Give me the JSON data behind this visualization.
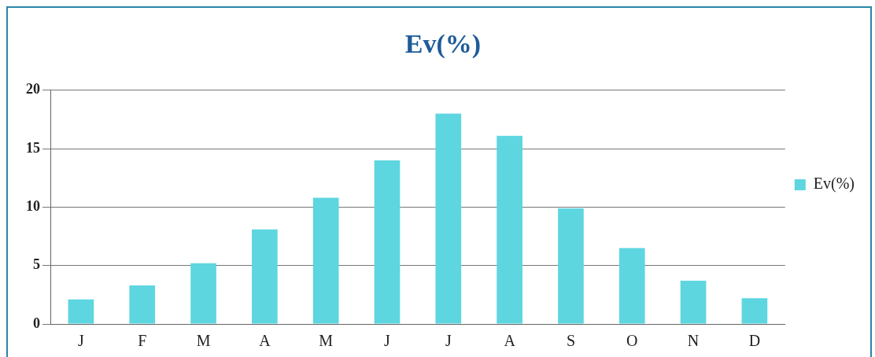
{
  "chart_data": {
    "type": "bar",
    "title": "Ev(%)",
    "categories": [
      "J",
      "F",
      "M",
      "A",
      "M",
      "J",
      "J",
      "A",
      "S",
      "O",
      "N",
      "D"
    ],
    "series": [
      {
        "name": "Ev(%)",
        "color": "#5dd6e0",
        "values": [
          2.1,
          3.3,
          5.2,
          8.1,
          10.8,
          14.0,
          18.0,
          16.1,
          9.9,
          6.5,
          3.7,
          2.2
        ]
      }
    ],
    "ylim": [
      0,
      20
    ],
    "yticks": [
      0,
      5,
      10,
      15,
      20
    ],
    "grid": "y",
    "legend": "right"
  }
}
